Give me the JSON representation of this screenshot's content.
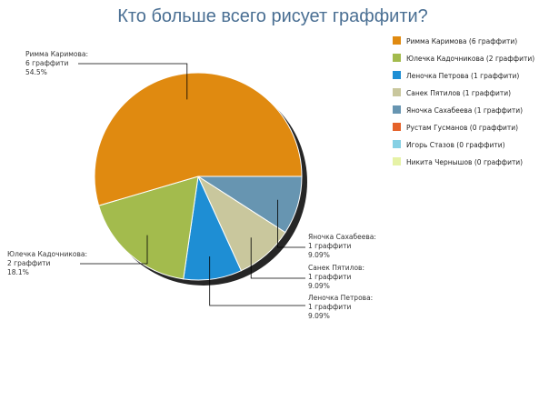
{
  "chart_data": {
    "type": "pie",
    "title": "Кто больше всего рисует граффити?",
    "slices": [
      {
        "name": "Римма Каримова",
        "count": 6,
        "count_text": "6 граффити",
        "percent": 54.5,
        "percent_text": "54.5%",
        "color": "#e08a10",
        "legend": "Римма Каримова (6 граффити)"
      },
      {
        "name": "Юлечка Кадочникова",
        "count": 2,
        "count_text": "2 граффити",
        "percent": 18.1,
        "percent_text": "18.1%",
        "color": "#a3bb4d",
        "legend": "Юлечка Кадочникова (2 граффити)"
      },
      {
        "name": "Леночка Петрова",
        "count": 1,
        "count_text": "1 граффити",
        "percent": 9.09,
        "percent_text": "9.09%",
        "color": "#1e8ed4",
        "legend": "Леночка Петрова (1 граффити)"
      },
      {
        "name": "Санек Пятилов",
        "count": 1,
        "count_text": "1 граффити",
        "percent": 9.09,
        "percent_text": "9.09%",
        "color": "#c9c79d",
        "legend": "Санек Пятилов (1 граффити)"
      },
      {
        "name": "Яночка Сахабеева",
        "count": 1,
        "count_text": "1 граффити",
        "percent": 9.09,
        "percent_text": "9.09%",
        "color": "#6795b1",
        "legend": "Яночка Сахабеева (1 граффити)"
      },
      {
        "name": "Рустам Гусманов",
        "count": 0,
        "count_text": "0 граффити",
        "percent": 0,
        "percent_text": "",
        "color": "#e5622a",
        "legend": "Рустам Гусманов (0 граффити)"
      },
      {
        "name": "Игорь Стазов",
        "count": 0,
        "count_text": "0 граффити",
        "percent": 0,
        "percent_text": "",
        "color": "#86d0e4",
        "legend": "Игорь Стазов (0 граффити)"
      },
      {
        "name": "Никита Чернышов",
        "count": 0,
        "count_text": "0 граффити",
        "percent": 0,
        "percent_text": "",
        "color": "#e6f2a6",
        "legend": "Никита Чернышов (0 граффити)"
      }
    ],
    "legend_position": "right",
    "shadow_color": "#000000"
  }
}
